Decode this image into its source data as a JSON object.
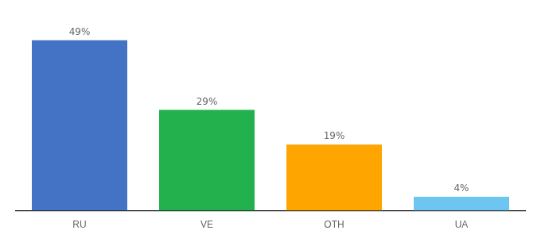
{
  "chart_data": {
    "type": "bar",
    "categories": [
      "RU",
      "VE",
      "OTH",
      "UA"
    ],
    "values": [
      49,
      29,
      19,
      4
    ],
    "value_labels": [
      "49%",
      "29%",
      "19%",
      "4%"
    ],
    "data_labels": true,
    "colors": [
      "#4472C4",
      "#22B14C",
      "#FFA500",
      "#6EC6F0"
    ],
    "ylim": [
      0,
      56
    ],
    "grid": false,
    "tick_labels": "x"
  }
}
